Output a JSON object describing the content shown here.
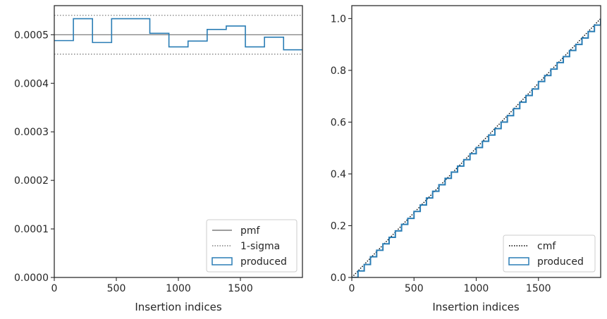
{
  "chart_data": [
    {
      "type": "step",
      "xlabel": "Insertion indices",
      "ylabel": "",
      "xlim": [
        0,
        2000
      ],
      "ylim": [
        0,
        0.00056
      ],
      "xticks": [
        0,
        500,
        1000,
        1500
      ],
      "xtick_labels": [
        "0",
        "500",
        "1000",
        "1500"
      ],
      "yticks": [
        0,
        0.0001,
        0.0002,
        0.0003,
        0.0004,
        0.0005
      ],
      "ytick_labels": [
        "0.0000",
        "0.0001",
        "0.0002",
        "0.0003",
        "0.0004",
        "0.0005"
      ],
      "legend_position": "lower-right",
      "grid": false,
      "reference_lines": [
        {
          "name": "pmf",
          "y": 0.0005,
          "color": "#7f7f7f",
          "style": "solid"
        },
        {
          "name": "1-sigma",
          "y": 0.00054,
          "color": "#7f7f7f",
          "style": "dotted"
        },
        {
          "name": "1-sigma",
          "y": 0.00046,
          "color": "#7f7f7f",
          "style": "dotted"
        }
      ],
      "series": [
        {
          "name": "produced",
          "color": "#2a7db5",
          "bin_edges": [
            0,
            154,
            308,
            462,
            616,
            770,
            924,
            1078,
            1232,
            1386,
            1540,
            1694,
            1848,
            2000
          ],
          "values": [
            0.000488,
            0.000533,
            0.000484,
            0.000533,
            0.000533,
            0.000503,
            0.000475,
            0.000487,
            0.000511,
            0.000518,
            0.000475,
            0.000495,
            0.000469
          ]
        }
      ],
      "legend": [
        {
          "label": "pmf",
          "kind": "line-solid",
          "color": "#7f7f7f"
        },
        {
          "label": "1-sigma",
          "kind": "line-dotted",
          "color": "#7f7f7f"
        },
        {
          "label": "produced",
          "kind": "box",
          "color": "#2a7db5"
        }
      ]
    },
    {
      "type": "line",
      "xlabel": "Insertion indices",
      "ylabel": "",
      "xlim": [
        0,
        2000
      ],
      "ylim": [
        0,
        1.05
      ],
      "xticks": [
        0,
        500,
        1000,
        1500
      ],
      "xtick_labels": [
        "0",
        "500",
        "1000",
        "1500"
      ],
      "yticks": [
        0,
        0.2,
        0.4,
        0.6,
        0.8,
        1.0
      ],
      "ytick_labels": [
        "0.0",
        "0.2",
        "0.4",
        "0.6",
        "0.8",
        "1.0"
      ],
      "legend_position": "lower-right",
      "grid": false,
      "series": [
        {
          "name": "cmf",
          "color": "#000000",
          "style": "dotted",
          "x": [
            0,
            2000
          ],
          "y": [
            0,
            1.0
          ]
        },
        {
          "name": "produced",
          "color": "#2a7db5",
          "style": "step",
          "x": [
            0,
            50,
            100,
            150,
            200,
            250,
            300,
            350,
            400,
            450,
            500,
            550,
            600,
            650,
            700,
            750,
            800,
            850,
            900,
            950,
            1000,
            1050,
            1100,
            1150,
            1200,
            1250,
            1300,
            1350,
            1400,
            1450,
            1500,
            1550,
            1600,
            1650,
            1700,
            1750,
            1800,
            1850,
            1900,
            1950,
            2000
          ],
          "y": [
            0,
            0.025,
            0.05,
            0.08,
            0.105,
            0.13,
            0.155,
            0.18,
            0.205,
            0.228,
            0.255,
            0.28,
            0.307,
            0.333,
            0.358,
            0.383,
            0.407,
            0.43,
            0.455,
            0.478,
            0.502,
            0.526,
            0.55,
            0.575,
            0.6,
            0.625,
            0.652,
            0.677,
            0.703,
            0.728,
            0.757,
            0.78,
            0.805,
            0.83,
            0.853,
            0.877,
            0.9,
            0.925,
            0.95,
            0.975,
            1.0
          ]
        }
      ],
      "legend": [
        {
          "label": "cmf",
          "kind": "line-dotted",
          "color": "#000000"
        },
        {
          "label": "produced",
          "kind": "box",
          "color": "#2a7db5"
        }
      ]
    }
  ]
}
